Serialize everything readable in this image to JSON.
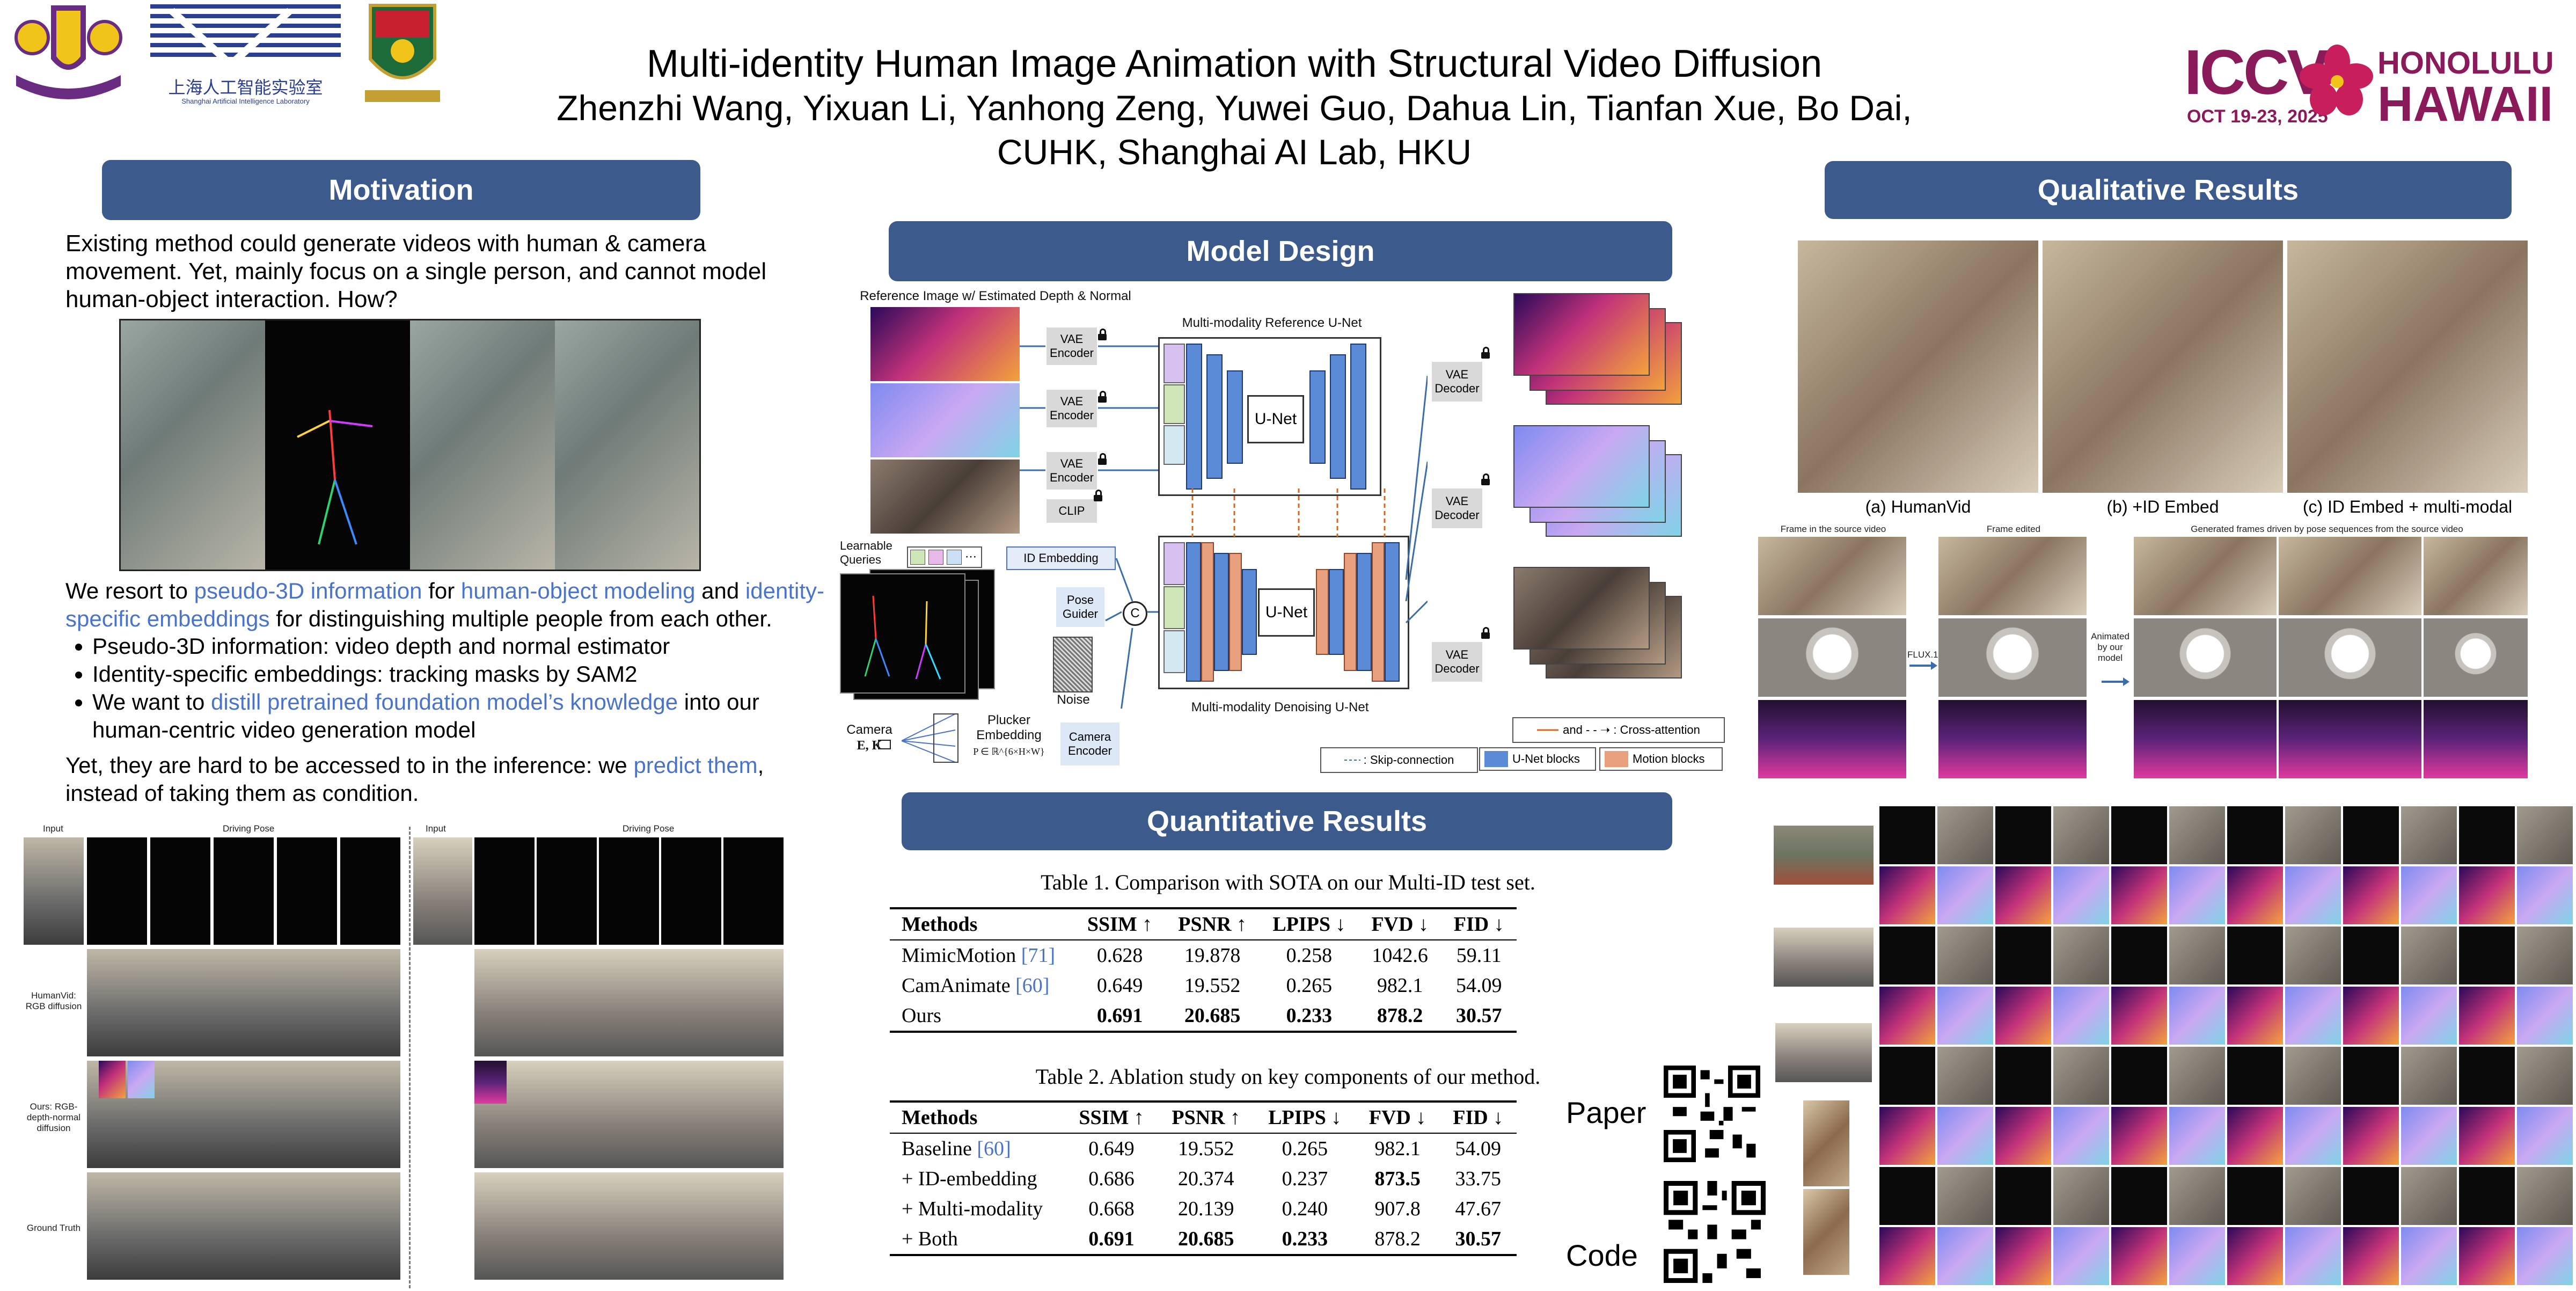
{
  "header": {
    "title": "Multi-identity Human Image Animation with Structural Video Diffusion",
    "authors": "Zhenzhi Wang, Yixuan Li, Yanhong Zeng, Yuwei Guo,  Dahua Lin, Tianfan Xue, Bo Dai,",
    "affiliations": "CUHK, Shanghai AI Lab, HKU",
    "lab_logo_text": "上海人工智能实验室",
    "lab_logo_sub": "Shanghai Artificial Intelligence Laboratory",
    "conference": {
      "name": "ICCV",
      "dates": "OCT 19-23, 2025",
      "city": "HONOLULU",
      "state": "HAWAII"
    }
  },
  "motivation": {
    "heading": "Motivation",
    "intro": "Existing method could generate videos with human & camera movement. Yet, mainly focus on a single person, and cannot model human-object interaction. How?",
    "p1": [
      "We resort to ",
      "pseudo-3D information",
      " for ",
      "human-object modeling",
      " and ",
      "identity-specific embeddings",
      " for distinguishing multiple people from each other."
    ],
    "bullets": [
      [
        "Pseudo-3D information: video depth and normal estimator"
      ],
      [
        "Identity-specific embeddings: tracking masks by SAM2"
      ],
      [
        "We want to ",
        "distill pretrained foundation model’s knowledge",
        " into our human-centric video generation model"
      ]
    ],
    "p2": [
      "Yet, they are hard to be accessed to in the inference: we ",
      "predict them",
      ", instead of taking them as condition."
    ]
  },
  "comparison_grid": {
    "left": {
      "input": "Input",
      "driving": "Driving Pose"
    },
    "right": {
      "input": "Input",
      "driving": "Driving Pose"
    },
    "rows": [
      "HumanVid: RGB diffusion",
      "Ours: RGB-depth-normal diffusion",
      "Ground Truth"
    ]
  },
  "model_design": {
    "heading": "Model Design",
    "ref_label": "Reference Image w/ Estimated Depth & Normal",
    "ref_unet": "Multi-modality Reference U-Net",
    "unet": "U-Net",
    "vae_encoder": "VAE Encoder",
    "vae_decoder": "VAE Decoder",
    "clip": "CLIP",
    "learnable_queries": "Learnable Queries",
    "id_embedding": "ID Embedding",
    "pose_guider": "Pose Guider",
    "noise": "Noise",
    "concat": "C",
    "camera": "Camera",
    "camera_sym": "E, K",
    "plucker": "Plucker Embedding",
    "plucker_sym": "P ∈ ℝ^{6×H×W}",
    "camera_encoder": "Camera Encoder",
    "denoise_unet": "Multi-modality Denoising U-Net",
    "legend": {
      "cross_attention": "and - - ➝ : Cross-attention",
      "skip": ": Skip-connection",
      "unet_blocks": "U-Net blocks",
      "motion_blocks": "Motion blocks"
    },
    "colors": {
      "unet_block": "#5b8ad6",
      "motion_block": "#e8a07f",
      "arrow": "#d2691e"
    }
  },
  "quantitative": {
    "heading": "Quantitative Results",
    "table1": {
      "caption": "Table 1. Comparison with SOTA on our Multi-ID test set.",
      "headers": [
        "Methods",
        "SSIM ↑",
        "PSNR ↑",
        "LPIPS ↓",
        "FVD ↓",
        "FID ↓"
      ],
      "rows": [
        {
          "name": "MimicMotion ",
          "ref": "[71]",
          "values": [
            "0.628",
            "19.878",
            "0.258",
            "1042.6",
            "59.11"
          ],
          "bold": [
            false,
            false,
            false,
            false,
            false
          ]
        },
        {
          "name": "CamAnimate ",
          "ref": "[60]",
          "values": [
            "0.649",
            "19.552",
            "0.265",
            "982.1",
            "54.09"
          ],
          "bold": [
            false,
            false,
            false,
            false,
            false
          ]
        },
        {
          "name": "Ours",
          "ref": "",
          "values": [
            "0.691",
            "20.685",
            "0.233",
            "878.2",
            "30.57"
          ],
          "bold": [
            true,
            true,
            true,
            true,
            true
          ]
        }
      ]
    },
    "table2": {
      "caption": "Table 2. Ablation study on key components of our method.",
      "headers": [
        "Methods",
        "SSIM ↑",
        "PSNR ↑",
        "LPIPS ↓",
        "FVD ↓",
        "FID ↓"
      ],
      "rows": [
        {
          "name": "Baseline ",
          "ref": "[60]",
          "values": [
            "0.649",
            "19.552",
            "0.265",
            "982.1",
            "54.09"
          ],
          "bold": [
            false,
            false,
            false,
            false,
            false
          ]
        },
        {
          "name": "+ ID-embedding",
          "ref": "",
          "values": [
            "0.686",
            "20.374",
            "0.237",
            "873.5",
            "33.75"
          ],
          "bold": [
            false,
            false,
            false,
            true,
            false
          ]
        },
        {
          "name": "+ Multi-modality",
          "ref": "",
          "values": [
            "0.668",
            "20.139",
            "0.240",
            "907.8",
            "47.67"
          ],
          "bold": [
            false,
            false,
            false,
            false,
            false
          ]
        },
        {
          "name": "+ Both",
          "ref": "",
          "values": [
            "0.691",
            "20.685",
            "0.233",
            "878.2",
            "30.57"
          ],
          "bold": [
            true,
            true,
            true,
            false,
            true
          ]
        }
      ]
    }
  },
  "links": {
    "paper": "Paper",
    "code": "Code"
  },
  "qualitative": {
    "heading": "Qualitative Results",
    "captions": [
      "(a) HumanVid",
      "(b) +ID Embed",
      "(c) ID Embed + multi-modal"
    ],
    "edit": {
      "source": "Frame in the source video",
      "edited": "Frame edited",
      "generated": "Generated frames driven by pose sequences from the source video",
      "flux": "FLUX.1",
      "animated": "Animated by our model"
    }
  }
}
